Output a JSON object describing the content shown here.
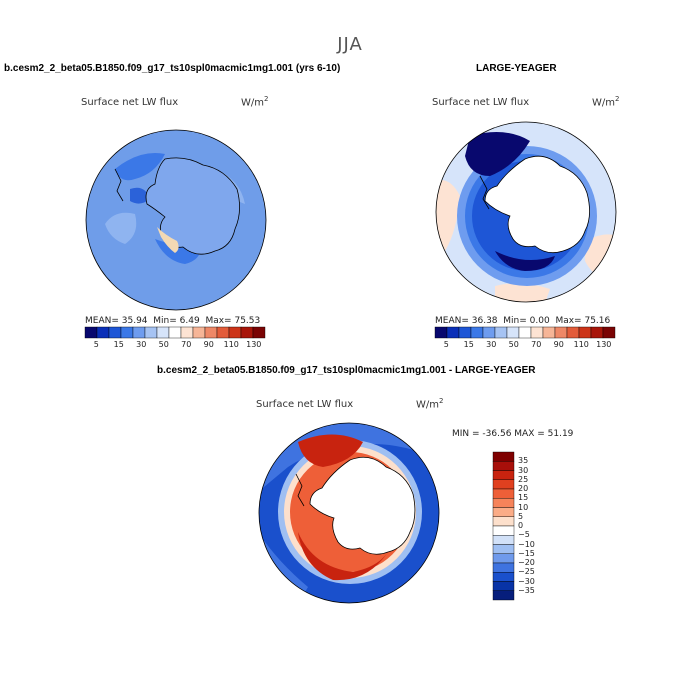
{
  "title": "JJA",
  "left_panel": {
    "title": "b.cesm2_2_beta05.B1850.f09_g17_ts10spl0macmic1mg1.001 (yrs 6-10)",
    "variable": "Surface net LW flux",
    "units": "W/m",
    "units_exp": "2",
    "stats": {
      "mean_label": "MEAN=",
      "mean": "35.94",
      "min_label": "Min=",
      "min": "6.49",
      "max_label": "Max=",
      "max": "75.53"
    }
  },
  "right_panel": {
    "title": "LARGE-YEAGER",
    "variable": "Surface net LW flux",
    "units": "W/m",
    "units_exp": "2",
    "stats": {
      "mean_label": "MEAN=",
      "mean": "36.38",
      "min_label": "Min=",
      "min": "0.00",
      "max_label": "Max=",
      "max": "75.16"
    }
  },
  "diff_panel": {
    "title": "b.cesm2_2_beta05.B1850.f09_g17_ts10spl0macmic1mg1.001 - LARGE-YEAGER",
    "variable": "Surface net LW flux",
    "units": "W/m",
    "units_exp": "2",
    "stats_text": "MIN = -36.56 MAX =  51.19"
  },
  "abs_colorbar": {
    "labels": [
      "5",
      "15",
      "30",
      "50",
      "70",
      "90",
      "110",
      "130"
    ],
    "colors": [
      "#08086e",
      "#0a2fb8",
      "#1e56d6",
      "#3b78e7",
      "#6e9cef",
      "#a6c3f3",
      "#d6e4fa",
      "#ffffff",
      "#fde3d3",
      "#f6b597",
      "#ee8867",
      "#e25c3a",
      "#cc3418",
      "#a8160a",
      "#7a0404"
    ]
  },
  "diff_colorbar": {
    "labels": [
      "35",
      "30",
      "25",
      "20",
      "15",
      "10",
      "5",
      "0",
      "−5",
      "−10",
      "−15",
      "−20",
      "−25",
      "−30",
      "−35"
    ],
    "colors": [
      "#7f0000",
      "#a80f0a",
      "#c8230f",
      "#e0401f",
      "#ee5f38",
      "#f6835a",
      "#fbac87",
      "#fde0cc",
      "#ffffff",
      "#d2e1f8",
      "#9fbff2",
      "#6f9aec",
      "#3f73e0",
      "#1a50cc",
      "#0833a6",
      "#061e7c"
    ]
  }
}
